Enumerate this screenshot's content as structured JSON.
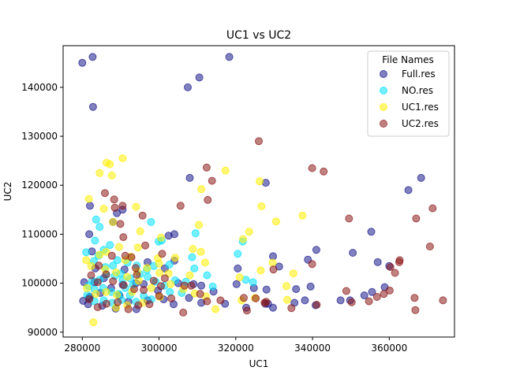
{
  "chart_data": {
    "type": "scatter",
    "title": "UC1 vs UC2",
    "xlabel": "UC1",
    "ylabel": "UC2",
    "xlim": [
      275000,
      377000
    ],
    "ylim": [
      89000,
      148500
    ],
    "xticks": [
      280000,
      300000,
      320000,
      340000,
      360000
    ],
    "yticks": [
      90000,
      100000,
      110000,
      120000,
      130000,
      140000
    ],
    "xtick_labels": [
      "280000",
      "300000",
      "320000",
      "340000",
      "360000"
    ],
    "ytick_labels": [
      "90000",
      "100000",
      "110000",
      "120000",
      "130000",
      "140000"
    ],
    "grid": false,
    "legend": {
      "title": "File Names",
      "placement": "top-right"
    },
    "series": [
      {
        "name": "Full.res",
        "color": "#1a1a8c",
        "points": [
          [
            280000,
            145000
          ],
          [
            282700,
            146200
          ],
          [
            282800,
            136000
          ],
          [
            307500,
            140000
          ],
          [
            310500,
            142000
          ],
          [
            318300,
            146200
          ],
          [
            282000,
            115800
          ],
          [
            281800,
            110000
          ],
          [
            282500,
            106500
          ],
          [
            283400,
            103000
          ],
          [
            288000,
            112500
          ],
          [
            289000,
            114300
          ],
          [
            290500,
            115000
          ],
          [
            308000,
            121500
          ],
          [
            327800,
            120500
          ],
          [
            365000,
            119000
          ],
          [
            368300,
            121500
          ],
          [
            355300,
            110500
          ],
          [
            341000,
            106800
          ],
          [
            350500,
            106200
          ],
          [
            329700,
            105500
          ],
          [
            338800,
            104800
          ],
          [
            357000,
            104300
          ],
          [
            360000,
            103500
          ],
          [
            331300,
            103400
          ],
          [
            320500,
            103000
          ],
          [
            302500,
            109700
          ],
          [
            304000,
            110000
          ],
          [
            304000,
            104600
          ],
          [
            297000,
            104300
          ],
          [
            291000,
            102800
          ],
          [
            301500,
            103000
          ],
          [
            305000,
            100000
          ],
          [
            311000,
            99500
          ],
          [
            314200,
            98300
          ],
          [
            320200,
            99800
          ],
          [
            324700,
            99000
          ],
          [
            328000,
            98700
          ],
          [
            335700,
            98800
          ],
          [
            339500,
            99300
          ],
          [
            358800,
            99200
          ],
          [
            355500,
            98200
          ],
          [
            347300,
            96500
          ],
          [
            349800,
            96500
          ],
          [
            353500,
            97500
          ],
          [
            338000,
            96500
          ],
          [
            335300,
            96000
          ],
          [
            329700,
            95000
          ],
          [
            327700,
            95800
          ],
          [
            322700,
            95000
          ],
          [
            317200,
            95800
          ],
          [
            311000,
            96000
          ],
          [
            307800,
            97000
          ],
          [
            303800,
            95700
          ],
          [
            301200,
            96700
          ],
          [
            297000,
            96500
          ],
          [
            294100,
            94700
          ],
          [
            288700,
            94800
          ],
          [
            285200,
            95400
          ],
          [
            281500,
            95700
          ],
          [
            280200,
            96400
          ],
          [
            282000,
            97200
          ],
          [
            284700,
            98000
          ],
          [
            287500,
            99000
          ],
          [
            290500,
            99700
          ],
          [
            294000,
            100000
          ],
          [
            296000,
            99800
          ],
          [
            299700,
            98500
          ],
          [
            289700,
            97500
          ],
          [
            292000,
            96200
          ],
          [
            285600,
            101000
          ],
          [
            283200,
            100200
          ],
          [
            280500,
            100200
          ],
          [
            281700,
            97000
          ],
          [
            309000,
            99800
          ],
          [
            340800,
            95500
          ],
          [
            328400,
            95800
          ]
        ]
      },
      {
        "name": "NO.res",
        "color": "#00e1ff",
        "points": [
          [
            283600,
            113000
          ],
          [
            284500,
            111500
          ],
          [
            283300,
            108700
          ],
          [
            285600,
            106800
          ],
          [
            284200,
            105600
          ],
          [
            281000,
            106300
          ],
          [
            287200,
            107800
          ],
          [
            289100,
            104700
          ],
          [
            291800,
            104200
          ],
          [
            294200,
            103600
          ],
          [
            296800,
            102700
          ],
          [
            298600,
            103500
          ],
          [
            299900,
            108500
          ],
          [
            300700,
            108700
          ],
          [
            297900,
            112500
          ],
          [
            302700,
            103800
          ],
          [
            309200,
            103000
          ],
          [
            308600,
            105300
          ],
          [
            314000,
            99300
          ],
          [
            307000,
            100300
          ],
          [
            304200,
            100600
          ],
          [
            305900,
            98000
          ],
          [
            302800,
            98200
          ],
          [
            301400,
            99500
          ],
          [
            299100,
            100300
          ],
          [
            297000,
            101300
          ],
          [
            295000,
            101800
          ],
          [
            292500,
            101000
          ],
          [
            290500,
            100700
          ],
          [
            288500,
            101500
          ],
          [
            286300,
            101700
          ],
          [
            284500,
            100700
          ],
          [
            282600,
            100500
          ],
          [
            281600,
            99400
          ],
          [
            283200,
            98700
          ],
          [
            285400,
            99000
          ],
          [
            287600,
            98200
          ],
          [
            289500,
            97800
          ],
          [
            291200,
            99000
          ],
          [
            293200,
            99700
          ],
          [
            292400,
            97500
          ],
          [
            290200,
            96600
          ],
          [
            287800,
            96000
          ],
          [
            285600,
            96500
          ],
          [
            283200,
            96300
          ],
          [
            281300,
            97600
          ],
          [
            288000,
            103600
          ],
          [
            290000,
            102000
          ],
          [
            283000,
            104500
          ],
          [
            286000,
            103300
          ],
          [
            309500,
            110200
          ],
          [
            320500,
            106000
          ],
          [
            321800,
            108500
          ],
          [
            322600,
            100700
          ],
          [
            324500,
            100200
          ],
          [
            312500,
            101600
          ],
          [
            296000,
            97400
          ],
          [
            298000,
            96700
          ],
          [
            294000,
            96200
          ]
        ]
      },
      {
        "name": "UC1.res",
        "color": "#ffee00",
        "points": [
          [
            290500,
            125500
          ],
          [
            286300,
            124600
          ],
          [
            287200,
            124300
          ],
          [
            284500,
            122500
          ],
          [
            287700,
            122000
          ],
          [
            317300,
            123000
          ],
          [
            326200,
            120800
          ],
          [
            311000,
            119200
          ],
          [
            281700,
            117200
          ],
          [
            285600,
            115200
          ],
          [
            294000,
            115600
          ],
          [
            326700,
            115700
          ],
          [
            337400,
            113800
          ],
          [
            330500,
            112600
          ],
          [
            323500,
            110500
          ],
          [
            321900,
            109000
          ],
          [
            310400,
            111900
          ],
          [
            300500,
            109300
          ],
          [
            308800,
            107000
          ],
          [
            310900,
            106400
          ],
          [
            304200,
            105200
          ],
          [
            299700,
            105100
          ],
          [
            295100,
            110600
          ],
          [
            294500,
            107300
          ],
          [
            289600,
            107400
          ],
          [
            292600,
            105400
          ],
          [
            291200,
            104700
          ],
          [
            286200,
            106400
          ],
          [
            284500,
            105800
          ],
          [
            281000,
            104700
          ],
          [
            282300,
            103500
          ],
          [
            286000,
            102800
          ],
          [
            288800,
            102200
          ],
          [
            291700,
            101300
          ],
          [
            294300,
            102400
          ],
          [
            296900,
            103100
          ],
          [
            300100,
            102100
          ],
          [
            302500,
            102000
          ],
          [
            303000,
            99800
          ],
          [
            306300,
            98800
          ],
          [
            309300,
            97900
          ],
          [
            312200,
            97300
          ],
          [
            314700,
            94700
          ],
          [
            321500,
            96500
          ],
          [
            325000,
            97000
          ],
          [
            333400,
            96600
          ],
          [
            333200,
            99400
          ],
          [
            326500,
            102600
          ],
          [
            329600,
            104200
          ],
          [
            312000,
            104200
          ],
          [
            298000,
            99000
          ],
          [
            293000,
            98200
          ],
          [
            289000,
            97600
          ],
          [
            286200,
            98200
          ],
          [
            283500,
            97800
          ],
          [
            281200,
            99000
          ],
          [
            282900,
            92000
          ],
          [
            288800,
            95000
          ],
          [
            291700,
            95500
          ],
          [
            295800,
            96000
          ],
          [
            300200,
            97200
          ],
          [
            294700,
            100500
          ],
          [
            308000,
            101600
          ],
          [
            321000,
            101200
          ],
          [
            335000,
            102000
          ],
          [
            288000,
            112500
          ],
          [
            300000,
            104000
          ]
        ]
      },
      {
        "name": "UC2.res",
        "color": "#8c1a1a",
        "points": [
          [
            326000,
            129000
          ],
          [
            312400,
            123600
          ],
          [
            339900,
            123500
          ],
          [
            342900,
            122800
          ],
          [
            313800,
            120900
          ],
          [
            312700,
            117000
          ],
          [
            288300,
            117100
          ],
          [
            285900,
            118400
          ],
          [
            295700,
            113800
          ],
          [
            290500,
            115800
          ],
          [
            288500,
            115400
          ],
          [
            305600,
            115800
          ],
          [
            289900,
            112100
          ],
          [
            290700,
            109400
          ],
          [
            296400,
            107700
          ],
          [
            291200,
            105600
          ],
          [
            287700,
            105600
          ],
          [
            292800,
            105300
          ],
          [
            293900,
            103100
          ],
          [
            284300,
            103600
          ],
          [
            286200,
            101800
          ],
          [
            282300,
            101600
          ],
          [
            284000,
            100200
          ],
          [
            288000,
            100400
          ],
          [
            290800,
            99600
          ],
          [
            293500,
            98800
          ],
          [
            296000,
            98600
          ],
          [
            300500,
            99400
          ],
          [
            301500,
            101000
          ],
          [
            306600,
            99500
          ],
          [
            308400,
            99500
          ],
          [
            310700,
            97800
          ],
          [
            312500,
            96300
          ],
          [
            316000,
            96500
          ],
          [
            322100,
            97000
          ],
          [
            325200,
            96900
          ],
          [
            327900,
            96200
          ],
          [
            329800,
            102800
          ],
          [
            339900,
            103900
          ],
          [
            348800,
            98400
          ],
          [
            350200,
            96100
          ],
          [
            354700,
            96300
          ],
          [
            356800,
            97200
          ],
          [
            358600,
            97800
          ],
          [
            360100,
            98500
          ],
          [
            360300,
            103300
          ],
          [
            361500,
            102100
          ],
          [
            362600,
            104300
          ],
          [
            362700,
            104700
          ],
          [
            367000,
            113200
          ],
          [
            371300,
            115300
          ],
          [
            370600,
            107500
          ],
          [
            366600,
            97000
          ],
          [
            366800,
            94500
          ],
          [
            374000,
            96500
          ],
          [
            349500,
            113200
          ],
          [
            341100,
            95600
          ],
          [
            334500,
            94900
          ],
          [
            327500,
            96000
          ],
          [
            322900,
            94400
          ],
          [
            306300,
            94000
          ],
          [
            303200,
            96900
          ],
          [
            300000,
            97400
          ],
          [
            297500,
            95700
          ],
          [
            294600,
            95500
          ],
          [
            292000,
            94700
          ],
          [
            289200,
            96100
          ],
          [
            286300,
            95800
          ],
          [
            284000,
            95100
          ],
          [
            281800,
            96700
          ],
          [
            298600,
            100500
          ],
          [
            294200,
            101700
          ],
          [
            300800,
            106000
          ]
        ]
      }
    ]
  }
}
